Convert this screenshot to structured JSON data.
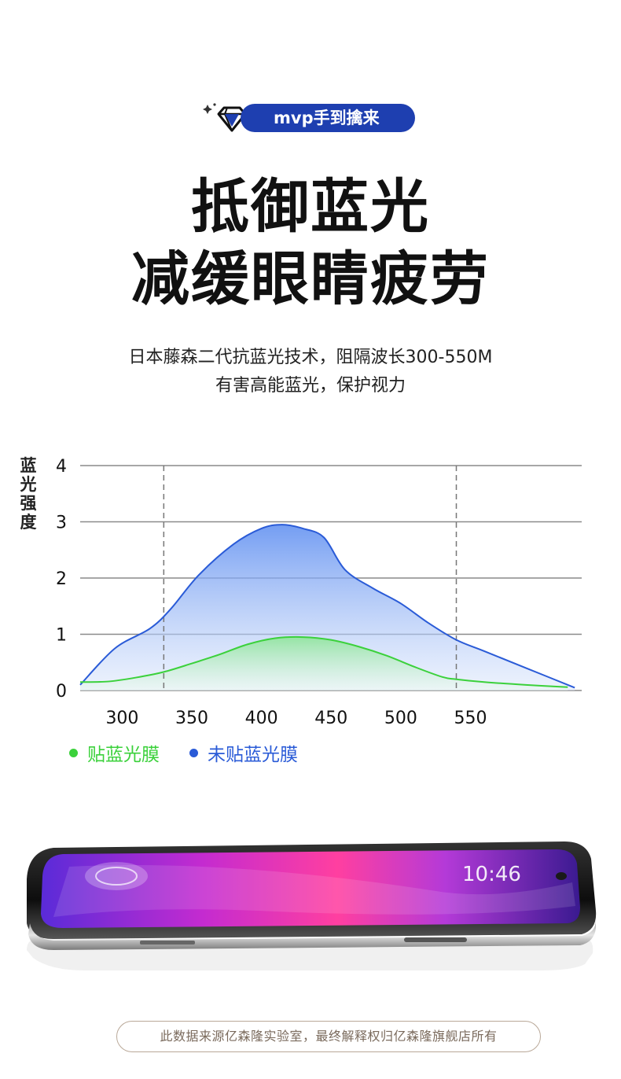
{
  "badge": {
    "label": "mvp手到擒来",
    "icon": "diamond-icon",
    "color": "#1e3fb0"
  },
  "headline": {
    "line1": "抵御蓝光",
    "line2": "减缓眼睛疲劳"
  },
  "subtitle": {
    "line1": "日本藤森二代抗蓝光技术，阻隔波长300-550M",
    "line2": "有害高能蓝光，保护视力"
  },
  "chart_data": {
    "type": "area",
    "ylabel": "蓝光强度",
    "ylim": [
      0,
      4
    ],
    "yticks": [
      "0",
      "1",
      "2",
      "3",
      "4"
    ],
    "xlim": [
      280,
      640
    ],
    "xticks": [
      "300",
      "350",
      "400",
      "450",
      "500",
      "550"
    ],
    "xtick_values": [
      300,
      350,
      400,
      450,
      500,
      550
    ],
    "reference_lines": [
      340,
      550
    ],
    "grid": true,
    "series": [
      {
        "name": "未贴蓝光膜",
        "color": "#2a5bd7",
        "x": [
          280,
          305,
          330,
          345,
          365,
          390,
          410,
          425,
          440,
          455,
          470,
          490,
          510,
          530,
          550,
          570,
          600,
          635
        ],
        "y": [
          0.1,
          0.75,
          1.1,
          1.45,
          2.05,
          2.6,
          2.88,
          2.95,
          2.88,
          2.72,
          2.15,
          1.82,
          1.55,
          1.2,
          0.9,
          0.7,
          0.4,
          0.05
        ]
      },
      {
        "name": "贴蓝光膜",
        "color": "#3bd13b",
        "x": [
          280,
          300,
          320,
          340,
          360,
          380,
          400,
          420,
          440,
          460,
          480,
          500,
          520,
          540,
          550,
          570,
          600,
          630
        ],
        "y": [
          0.15,
          0.16,
          0.23,
          0.33,
          0.48,
          0.64,
          0.82,
          0.93,
          0.95,
          0.9,
          0.78,
          0.62,
          0.42,
          0.24,
          0.2,
          0.15,
          0.1,
          0.06
        ]
      }
    ]
  },
  "legend": {
    "items": [
      {
        "label": "贴蓝光膜",
        "color": "#3bd13b"
      },
      {
        "label": "未贴蓝光膜",
        "color": "#2a5bd7"
      }
    ]
  },
  "phone": {
    "icon": "smartphone-icon",
    "time": "10:46"
  },
  "footer": {
    "text": "此数据来源亿森隆实验室，最终解释权归亿森隆旗舰店所有"
  }
}
